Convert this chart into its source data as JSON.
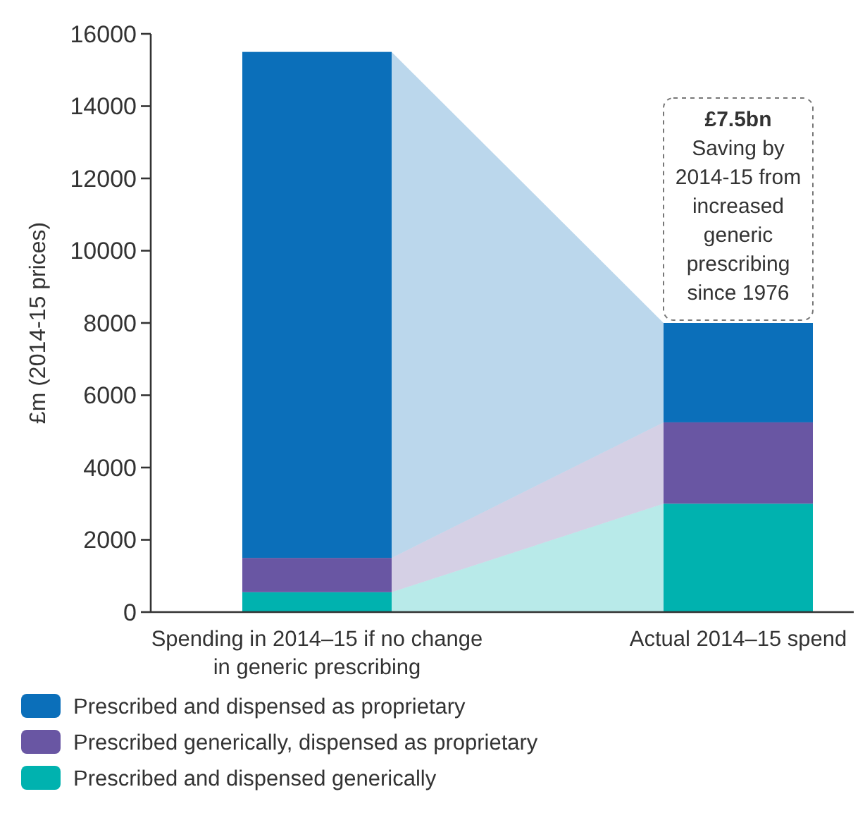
{
  "chart_data": {
    "type": "bar",
    "stacked": true,
    "ylabel": "£m (2014-15 prices)",
    "categories": [
      "Spending in 2014–15 if no change in generic prescribing",
      "Actual 2014–15 spend"
    ],
    "series": [
      {
        "name": "Prescribed and dispensed generically",
        "color": "#00b2af",
        "values": [
          550,
          3000
        ]
      },
      {
        "name": "Prescribed generically, dispensed as proprietary",
        "color": "#6956a3",
        "values": [
          950,
          2250
        ]
      },
      {
        "name": "Prescribed and dispensed as proprietary",
        "color": "#0b6fba",
        "values": [
          14000,
          2750
        ]
      }
    ],
    "ylim": [
      0,
      16000
    ],
    "yticks": [
      0,
      2000,
      4000,
      6000,
      8000,
      10000,
      12000,
      14000,
      16000
    ],
    "grid": false,
    "legend": "bottom",
    "annotations": [
      "£7.5bn",
      "Saving by 2014-15 from increased generic prescribing since 1976"
    ]
  }
}
